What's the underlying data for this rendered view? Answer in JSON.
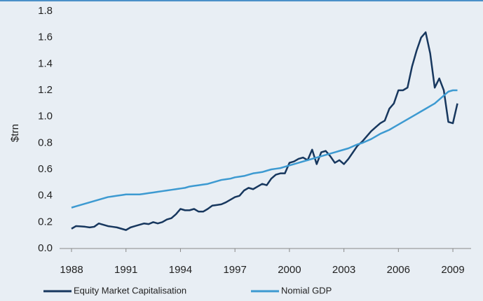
{
  "chart_data": {
    "type": "line",
    "ylabel": "$trn",
    "x": [
      1988,
      1988.25,
      1988.5,
      1988.75,
      1989,
      1989.25,
      1989.5,
      1989.75,
      1990,
      1990.25,
      1990.5,
      1990.75,
      1991,
      1991.25,
      1991.5,
      1991.75,
      1992,
      1992.25,
      1992.5,
      1992.75,
      1993,
      1993.25,
      1993.5,
      1993.75,
      1994,
      1994.25,
      1994.5,
      1994.75,
      1995,
      1995.25,
      1995.5,
      1995.75,
      1996,
      1996.25,
      1996.5,
      1996.75,
      1997,
      1997.25,
      1997.5,
      1997.75,
      1998,
      1998.25,
      1998.5,
      1998.75,
      1999,
      1999.25,
      1999.5,
      1999.75,
      2000,
      2000.25,
      2000.5,
      2000.75,
      2001,
      2001.25,
      2001.5,
      2001.75,
      2002,
      2002.25,
      2002.5,
      2002.75,
      2003,
      2003.25,
      2003.5,
      2003.75,
      2004,
      2004.25,
      2004.5,
      2004.75,
      2005,
      2005.25,
      2005.5,
      2005.75,
      2006,
      2006.25,
      2006.5,
      2006.75,
      2007,
      2007.25,
      2007.5,
      2007.75,
      2008,
      2008.25,
      2008.5,
      2008.75,
      2009,
      2009.25
    ],
    "series": [
      {
        "name": "Equity Market Capitalisation",
        "color": "#17375e",
        "values": [
          0.15,
          0.17,
          0.168,
          0.165,
          0.16,
          0.165,
          0.19,
          0.18,
          0.17,
          0.165,
          0.16,
          0.15,
          0.14,
          0.16,
          0.17,
          0.18,
          0.19,
          0.185,
          0.2,
          0.19,
          0.2,
          0.22,
          0.23,
          0.26,
          0.3,
          0.29,
          0.29,
          0.3,
          0.28,
          0.28,
          0.3,
          0.325,
          0.33,
          0.335,
          0.35,
          0.37,
          0.39,
          0.4,
          0.44,
          0.46,
          0.45,
          0.47,
          0.49,
          0.48,
          0.53,
          0.56,
          0.57,
          0.57,
          0.65,
          0.66,
          0.68,
          0.69,
          0.67,
          0.75,
          0.64,
          0.73,
          0.74,
          0.7,
          0.65,
          0.67,
          0.64,
          0.68,
          0.73,
          0.78,
          0.81,
          0.85,
          0.89,
          0.92,
          0.95,
          0.97,
          1.06,
          1.1,
          1.2,
          1.2,
          1.22,
          1.38,
          1.5,
          1.6,
          1.64,
          1.48,
          1.22,
          1.29,
          1.2,
          0.96,
          0.95,
          1.1
        ]
      },
      {
        "name": "Nomial GDP",
        "color": "#3d9ad1",
        "values": [
          0.31,
          0.32,
          0.33,
          0.34,
          0.35,
          0.36,
          0.37,
          0.38,
          0.39,
          0.395,
          0.4,
          0.405,
          0.41,
          0.41,
          0.41,
          0.41,
          0.415,
          0.42,
          0.425,
          0.43,
          0.435,
          0.44,
          0.445,
          0.45,
          0.455,
          0.46,
          0.47,
          0.475,
          0.48,
          0.485,
          0.49,
          0.5,
          0.51,
          0.52,
          0.525,
          0.53,
          0.54,
          0.545,
          0.55,
          0.56,
          0.57,
          0.575,
          0.58,
          0.59,
          0.6,
          0.605,
          0.61,
          0.62,
          0.63,
          0.64,
          0.65,
          0.66,
          0.67,
          0.68,
          0.69,
          0.7,
          0.71,
          0.72,
          0.73,
          0.74,
          0.75,
          0.76,
          0.775,
          0.79,
          0.8,
          0.815,
          0.83,
          0.85,
          0.87,
          0.885,
          0.9,
          0.92,
          0.94,
          0.96,
          0.98,
          1.0,
          1.02,
          1.04,
          1.06,
          1.08,
          1.1,
          1.13,
          1.16,
          1.19,
          1.2,
          1.2
        ]
      }
    ],
    "xlim": [
      1988,
      2009.5
    ],
    "xticks": [
      1988,
      1991,
      1994,
      1997,
      2000,
      2003,
      2006,
      2009
    ],
    "ylim": [
      0,
      1.8
    ],
    "yticks": [
      {
        "value": 0,
        "label": "0.0"
      },
      0.2,
      0.4,
      0.6,
      0.8,
      {
        "value": 1,
        "label": "1.0"
      },
      1.2,
      1.4,
      1.6,
      1.8
    ],
    "grid": false,
    "legend": "bottom"
  }
}
